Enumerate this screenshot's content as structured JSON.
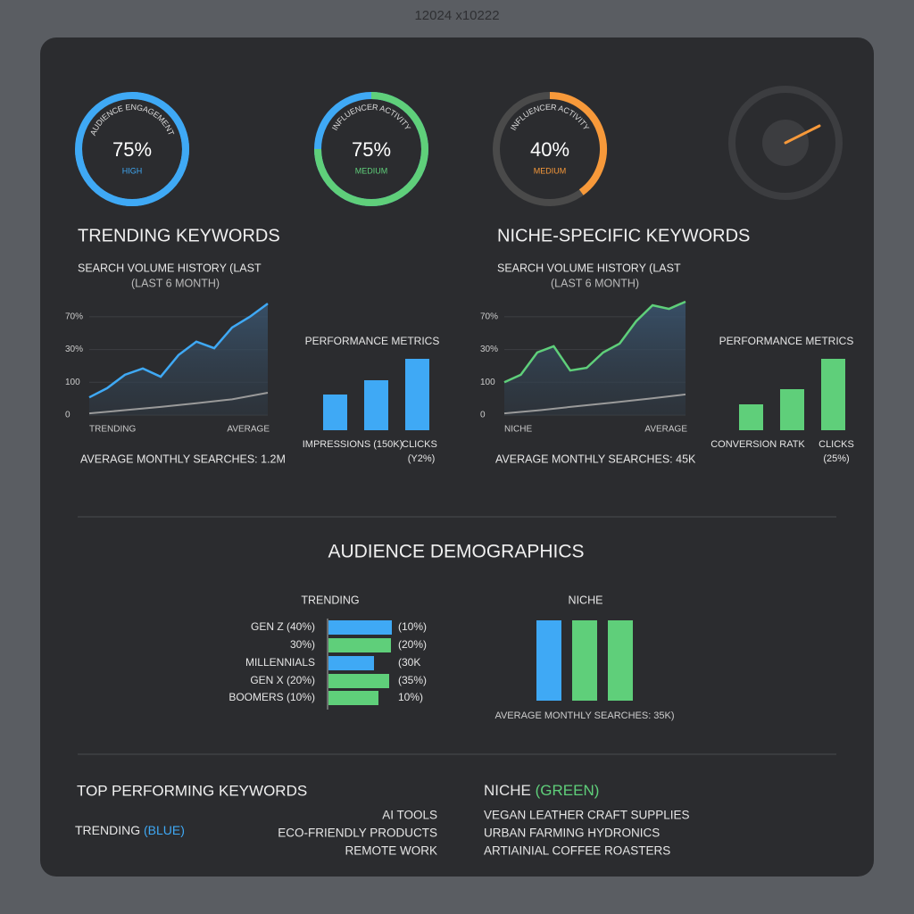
{
  "caption": "12024 x10222",
  "gauges": [
    {
      "label": "AUDIENCE ENGAGEMENT",
      "value": 75,
      "value_label": "75%",
      "status": "HIGH",
      "color": "#3fa9f5",
      "track_color": "#3fa9f5"
    },
    {
      "label": "INFLUENCER ACTIVITY",
      "value": 75,
      "value_label": "75%",
      "status": "MEDIUM",
      "color": "#5fcf7a",
      "track_color": "#3fa9f5"
    },
    {
      "label": "INFLUENCER ACTIVITY",
      "value": 40,
      "value_label": "40%",
      "status": "MEDIUM",
      "color": "#f7993a",
      "track_color": "#4a4a4a"
    }
  ],
  "panels": [
    {
      "title": "TRENDING KEYWORDS",
      "subtitle": [
        "SEARCH VOLUME HISTORY (LAST",
        "(LAST 6 MONTH)"
      ],
      "ylim": [
        0,
        3.5
      ],
      "yticks": [
        0,
        {
          "value": 1,
          "label": "100"
        },
        {
          "value": 2,
          "label": "30%"
        },
        {
          "value": 3,
          "label": "70%"
        }
      ],
      "line": {
        "color": "#3fa9f5",
        "values": [
          0.54,
          0.82,
          1.23,
          1.42,
          1.17,
          1.83,
          2.24,
          2.04,
          2.67,
          3.0,
          3.4
        ]
      },
      "average": {
        "color": "#9a9a9a",
        "values": [
          0.05,
          0.15,
          0.25,
          0.36,
          0.48,
          0.68
        ]
      },
      "x_labels": [
        "TRENDING",
        "AVERAGE"
      ],
      "footer": "AVERAGE MONTHLY SEARCHES: 1.2M",
      "metrics_title": "PERFORMANCE METRICS",
      "metrics_color": "#3fa9f5",
      "metrics": [
        40,
        56,
        80
      ],
      "metric_labels": [
        "IMPRESSIONS (150K)",
        "CLICKS",
        "(Y2%)"
      ]
    },
    {
      "title": "NICHE-SPECIFIC KEYWORDS",
      "subtitle": [
        "SEARCH VOLUME HISTORY (LAST",
        "(LAST 6 MONTH)"
      ],
      "ylim": [
        0,
        3.5
      ],
      "yticks": [
        0,
        {
          "value": 1,
          "label": "100"
        },
        {
          "value": 2,
          "label": "30%"
        },
        {
          "value": 3,
          "label": "70%"
        }
      ],
      "line": {
        "color": "#5fcf7a",
        "values": [
          1.0,
          1.23,
          1.91,
          2.1,
          1.36,
          1.44,
          1.91,
          2.18,
          2.86,
          3.35,
          3.24,
          3.46
        ]
      },
      "average": {
        "color": "#9a9a9a",
        "values": [
          0.05,
          0.15,
          0.27,
          0.38,
          0.5,
          0.63
        ]
      },
      "x_labels": [
        "NICHE",
        "AVERAGE"
      ],
      "footer": "AVERAGE MONTHLY SEARCHES: 45K",
      "metrics_title": "PERFORMANCE METRICS",
      "metrics_color": "#5fcf7a",
      "metrics": [
        29,
        46,
        80
      ],
      "metric_labels": [
        "CONVERSION RATK",
        "CLICKS",
        "(25%)"
      ]
    }
  ],
  "demographics": {
    "title": "AUDIENCE DEMOGRAPHICS",
    "trending": {
      "title": "TRENDING",
      "left_labels": [
        "GEN Z (40%)",
        "30%)",
        "MILLENNIALS",
        "GEN X (20%)",
        "BOOMERS (10%)"
      ],
      "right_labels": [
        "(10%)",
        "(20%)",
        "(30K",
        "(35%)",
        "10%)"
      ],
      "values": [
        71,
        70,
        51,
        68,
        56
      ],
      "colors": [
        "#3fa9f5",
        "#5fcf7a",
        "#3fa9f5",
        "#5fcf7a",
        "#5fcf7a"
      ]
    },
    "niche": {
      "title": "NICHE",
      "values": [
        90,
        90,
        90
      ],
      "colors": [
        "#3fa9f5",
        "#5fcf7a",
        "#5fcf7a"
      ],
      "caption": "AVERAGE MONTHLY SEARCHES: 35K)"
    }
  },
  "top": {
    "title": "TOP PERFORMING KEYWORDS",
    "trending": {
      "label": "TRENDING ",
      "tag": "(BLUE)",
      "items": [
        "AI TOOLS",
        "ECO-FRIENDLY PRODUCTS",
        "REMOTE WORK"
      ]
    },
    "niche": {
      "label": "NICHE ",
      "tag": "(GREEN)",
      "items": [
        "VEGAN LEATHER CRAFT SUPPLIES",
        "URBAN FARMING HYDRONICS",
        "ARTIAINIAL COFFEE ROASTERS"
      ]
    }
  }
}
